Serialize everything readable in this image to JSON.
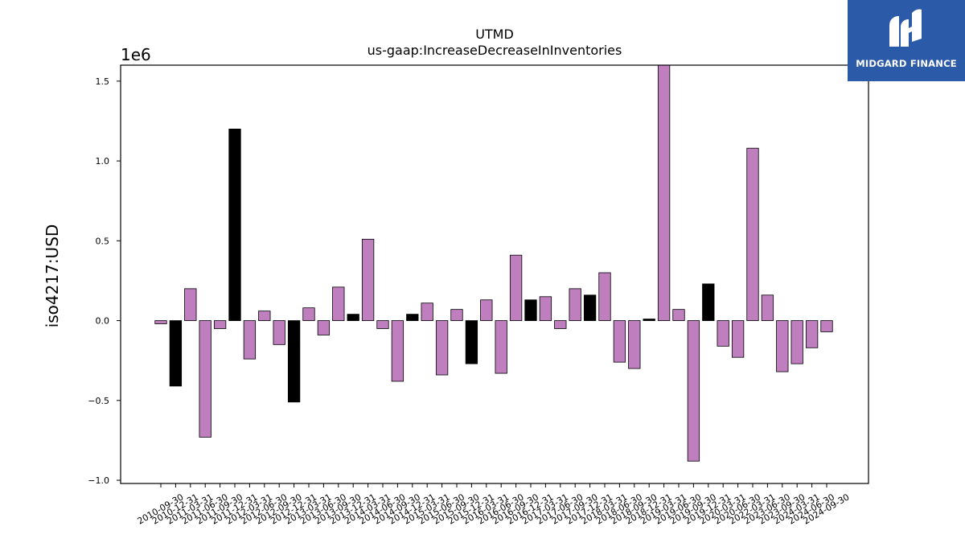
{
  "brand": {
    "name": "MIDGARD FINANCE",
    "color": "#2b5aa8",
    "icon": "midgard-logo-icon"
  },
  "chart_data": {
    "type": "bar",
    "title": "UTMD",
    "subtitle": "us-gaap:IncreaseDecreaseInInventories",
    "ylabel": "iso4217:USD",
    "xlabel": "",
    "y_scale_label": "1e6",
    "ylim": [
      -1.02,
      1.6
    ],
    "yticks": [
      -1.0,
      -0.5,
      0.0,
      0.5,
      1.0,
      1.5
    ],
    "ytick_labels": [
      "−1.0",
      "−0.5",
      "0.0",
      "0.5",
      "1.0",
      "1.5"
    ],
    "units_multiplier": 1000000,
    "grid": false,
    "colors": {
      "default": "#bf7fbf",
      "highlight": "#000000",
      "edge": "#000000"
    },
    "categories": [
      "2010-09-30",
      "2010-12-31",
      "2011-03-31",
      "2011-06-30",
      "2011-09-30",
      "2011-12-31",
      "2012-03-31",
      "2012-06-30",
      "2012-09-30",
      "2012-12-31",
      "2013-03-31",
      "2013-06-30",
      "2013-09-30",
      "2013-12-31",
      "2014-03-31",
      "2014-06-30",
      "2014-09-30",
      "2014-12-31",
      "2015-03-31",
      "2015-06-30",
      "2015-09-30",
      "2015-12-31",
      "2016-03-31",
      "2016-06-30",
      "2016-09-30",
      "2016-12-31",
      "2017-03-31",
      "2017-06-30",
      "2017-09-30",
      "2017-12-31",
      "2018-03-31",
      "2018-06-30",
      "2018-09-30",
      "2018-12-31",
      "2019-03-31",
      "2019-06-30",
      "2019-09-30",
      "2019-12-31",
      "2020-03-31",
      "2020-06-30",
      "2022-03-31",
      "2023-06-30",
      "2023-09-30",
      "2024-03-31",
      "2024-06-30",
      "2024-09-30"
    ],
    "values": [
      -0.02,
      -0.41,
      0.2,
      -0.73,
      -0.05,
      1.2,
      -0.24,
      0.06,
      -0.15,
      -0.51,
      0.08,
      -0.09,
      0.21,
      0.04,
      0.51,
      -0.05,
      -0.38,
      0.04,
      0.11,
      -0.34,
      0.07,
      -0.27,
      0.13,
      -0.33,
      0.41,
      0.13,
      0.15,
      -0.05,
      0.2,
      0.16,
      0.3,
      -0.26,
      -0.3,
      0.01,
      1.6,
      0.07,
      -0.88,
      0.23,
      -0.16,
      -0.23,
      1.08,
      0.16,
      -0.32,
      -0.27,
      -0.17,
      -0.07
    ],
    "highlight": [
      false,
      true,
      false,
      false,
      false,
      true,
      false,
      false,
      false,
      true,
      false,
      false,
      false,
      true,
      false,
      false,
      false,
      true,
      false,
      false,
      false,
      true,
      false,
      false,
      false,
      true,
      false,
      false,
      false,
      true,
      false,
      false,
      false,
      true,
      false,
      false,
      false,
      true,
      false,
      false,
      false,
      false,
      false,
      false,
      false,
      false
    ]
  }
}
